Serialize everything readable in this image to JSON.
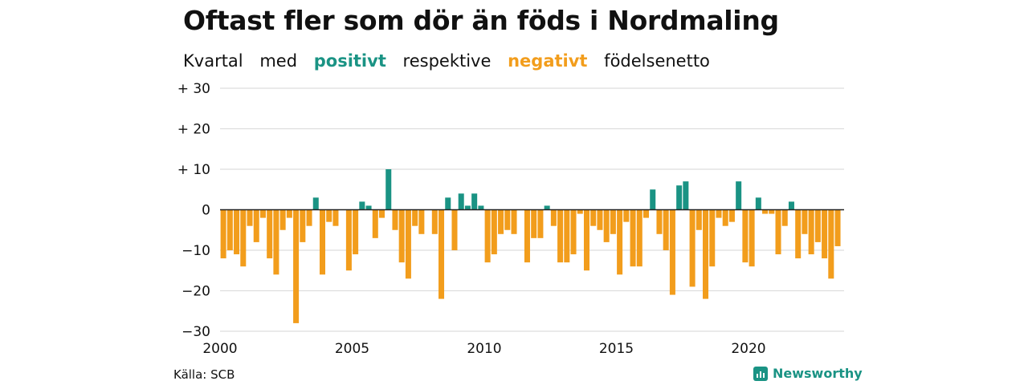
{
  "title": "Oftast fler som dör än föds i Nordmaling",
  "subtitle": {
    "part1": "Kvartal",
    "part2": "med",
    "positive_word": "positivt",
    "part3": "respektive",
    "negative_word": "negativt",
    "part4": "födelsenetto"
  },
  "source": "Källa: SCB",
  "brand": "Newsworthy",
  "colors": {
    "positive": "#1a9384",
    "negative": "#f29d1c",
    "grid": "#dddddd",
    "baseline": "#222222"
  },
  "chart_data": {
    "type": "bar",
    "title": "Oftast fler som dör än föds i Nordmaling",
    "subtitle": "Kvartal med positivt respektive negativt födelsenetto",
    "xlabel": "",
    "ylabel": "",
    "ylim": [
      -30,
      30
    ],
    "yticks": [
      {
        "value": 30,
        "label": "+ 30"
      },
      {
        "value": 20,
        "label": "+ 20"
      },
      {
        "value": 10,
        "label": "+ 10"
      },
      {
        "value": 0,
        "label": "0"
      },
      {
        "value": -10,
        "label": "−10"
      },
      {
        "value": -20,
        "label": "−20"
      },
      {
        "value": -30,
        "label": "−30"
      }
    ],
    "xticks": [
      "2000",
      "2005",
      "2010",
      "2015",
      "2020"
    ],
    "x_start": "2000 Q1",
    "frequency": "quarterly",
    "grid": true,
    "values": [
      -12,
      -10,
      -11,
      -14,
      -4,
      -8,
      -2,
      -12,
      -16,
      -5,
      -2,
      -28,
      -8,
      -4,
      3,
      -16,
      -3,
      -4,
      0,
      -15,
      -11,
      2,
      1,
      -7,
      -2,
      10,
      -5,
      -13,
      -17,
      -4,
      -6,
      0,
      -6,
      -22,
      3,
      -10,
      4,
      1,
      4,
      1,
      -13,
      -11,
      -6,
      -5,
      -6,
      0,
      -13,
      -7,
      -7,
      1,
      -4,
      -13,
      -13,
      -11,
      -1,
      -15,
      -4,
      -5,
      -8,
      -6,
      -16,
      -3,
      -14,
      -14,
      -2,
      5,
      -6,
      -10,
      -21,
      6,
      7,
      -19,
      -5,
      -22,
      -14,
      -2,
      -4,
      -3,
      7,
      -13,
      -14,
      3,
      -1,
      -1,
      -11,
      -4,
      2,
      -12,
      -6,
      -11,
      -8,
      -12,
      -17,
      -9
    ]
  }
}
